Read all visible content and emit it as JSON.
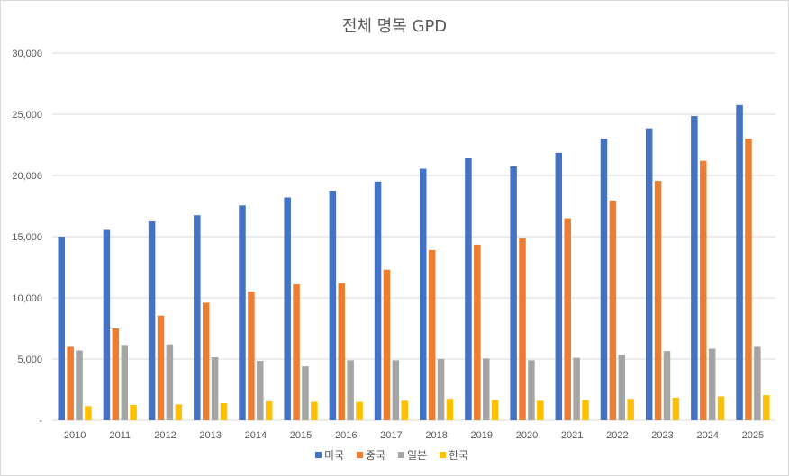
{
  "chart_data": {
    "type": "bar",
    "title": "전체 명목 GPD",
    "xlabel": "",
    "ylabel": "",
    "ylim": [
      0,
      30000
    ],
    "y_ticks": [
      "-",
      "5,000",
      "10,000",
      "15,000",
      "20,000",
      "25,000",
      "30,000"
    ],
    "grid": true,
    "legend_position": "bottom",
    "categories": [
      "2010",
      "2011",
      "2012",
      "2013",
      "2014",
      "2015",
      "2016",
      "2017",
      "2018",
      "2019",
      "2020",
      "2021",
      "2022",
      "2023",
      "2024",
      "2025"
    ],
    "series": [
      {
        "name": "미국",
        "color": "#4472c4",
        "values": [
          15000,
          15550,
          16250,
          16750,
          17550,
          18200,
          18750,
          19500,
          20550,
          21400,
          20750,
          21850,
          23000,
          23850,
          24850,
          25750
        ]
      },
      {
        "name": "중국",
        "color": "#ed7d31",
        "values": [
          6000,
          7500,
          8550,
          9600,
          10500,
          11100,
          11200,
          12300,
          13900,
          14350,
          14850,
          16500,
          17950,
          19550,
          21200,
          23000
        ]
      },
      {
        "name": "일본",
        "color": "#a5a5a5",
        "values": [
          5700,
          6150,
          6200,
          5150,
          4850,
          4400,
          4900,
          4900,
          5000,
          5050,
          4900,
          5100,
          5350,
          5650,
          5850,
          6000
        ]
      },
      {
        "name": "한국",
        "color": "#ffc000",
        "values": [
          1150,
          1250,
          1300,
          1400,
          1550,
          1500,
          1500,
          1600,
          1750,
          1650,
          1600,
          1650,
          1750,
          1850,
          1950,
          2050
        ]
      }
    ]
  }
}
